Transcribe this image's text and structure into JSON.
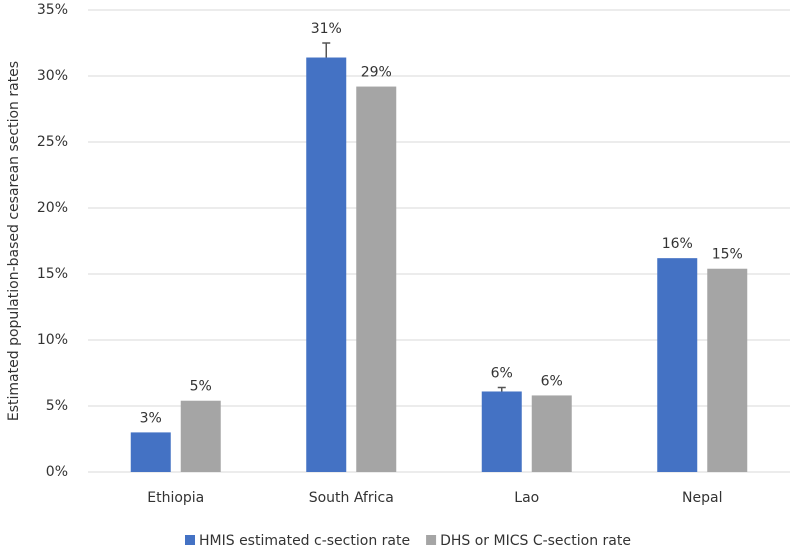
{
  "chart_data": {
    "type": "bar",
    "y_label": "Estimated population-based cesarean section rates",
    "categories": [
      "Ethiopia",
      "South Africa",
      "Lao",
      "Nepal"
    ],
    "series": [
      {
        "name": "HMIS estimated c-section rate",
        "color": "#4472c4",
        "values": [
          3.0,
          31.4,
          6.1,
          16.2
        ],
        "value_labels": [
          "3%",
          "31%",
          "6%",
          "16%"
        ],
        "errors": [
          null,
          1.1,
          0.3,
          null
        ]
      },
      {
        "name": "DHS or MICS C-section rate",
        "color": "#a5a5a5",
        "values": [
          5.4,
          29.2,
          5.8,
          15.4
        ],
        "value_labels": [
          "5%",
          "29%",
          "6%",
          "15%"
        ]
      }
    ],
    "ylim": [
      0,
      35
    ],
    "yticks": [
      {
        "value": 0,
        "label": "0%"
      },
      {
        "value": 5,
        "label": "5%"
      },
      {
        "value": 10,
        "label": "10%"
      },
      {
        "value": 15,
        "label": "15%"
      },
      {
        "value": 20,
        "label": "20%"
      },
      {
        "value": 25,
        "label": "25%"
      },
      {
        "value": 30,
        "label": "30%"
      },
      {
        "value": 35,
        "label": "35%"
      }
    ],
    "grid": true,
    "legend": "bottom"
  }
}
